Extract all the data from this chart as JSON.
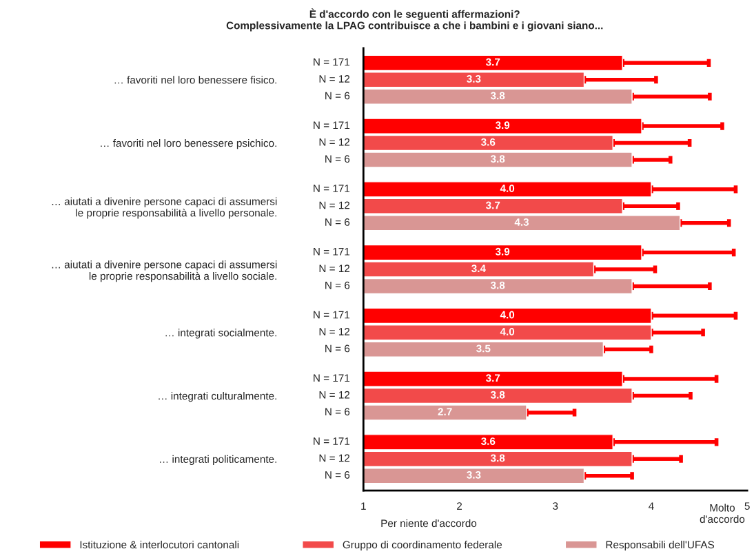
{
  "chart_data": {
    "type": "bar",
    "orientation": "horizontal",
    "title": "È d'accordo con le seguenti affermazioni?\nComplessivamente la LPAG contribuisce a che i bambini e i giovani siano...",
    "categories": [
      "… favoriti nel loro benessere fisico.",
      "… favoriti nel loro benessere psichico.",
      "… aiutati a divenire persone capaci di assumersi\nle proprie responsabilità a livello personale.",
      "… aiutati a divenire persone capaci di assumersi\nle proprie responsabilità a livello sociale.",
      "… integrati socialmente.",
      "… integrati culturalmente.",
      "… integrati politicamente."
    ],
    "series": [
      {
        "name": "Istituzione & interlocutori cantonali",
        "color": "#ff0000",
        "values": [
          3.7,
          3.9,
          4.0,
          3.9,
          4.0,
          3.7,
          3.6
        ],
        "value_labels": [
          "3.7",
          "3.9",
          "4.0",
          "3.9",
          "4.0",
          "3.7",
          "3.6"
        ],
        "errors": [
          [
            3.7,
            4.6
          ],
          [
            3.9,
            4.74
          ],
          [
            4.0,
            4.88
          ],
          [
            3.9,
            4.86
          ],
          [
            4.0,
            4.88
          ],
          [
            3.7,
            4.68
          ],
          [
            3.6,
            4.68
          ]
        ]
      },
      {
        "name": "Gruppo di coordinamento federale",
        "color": "#f24a4a",
        "values": [
          3.3,
          3.6,
          3.7,
          3.4,
          4.0,
          3.8,
          3.8
        ],
        "value_labels": [
          "3.3",
          "3.6",
          "3.7",
          "3.4",
          "4.0",
          "3.8",
          "3.8"
        ],
        "errors": [
          [
            3.3,
            4.05
          ],
          [
            3.6,
            4.4
          ],
          [
            3.7,
            4.28
          ],
          [
            3.4,
            4.04
          ],
          [
            4.0,
            4.54
          ],
          [
            3.8,
            4.41
          ],
          [
            3.8,
            4.31
          ]
        ]
      },
      {
        "name": "Responsabili dell'UFAS",
        "color": "#d99694",
        "values": [
          3.8,
          3.8,
          4.3,
          3.8,
          3.5,
          2.7,
          3.3
        ],
        "value_labels": [
          "3.8",
          "3.8",
          "4.3",
          "3.8",
          "3.5",
          "2.7",
          "3.3"
        ],
        "errors": [
          [
            3.8,
            4.61
          ],
          [
            3.8,
            4.2
          ],
          [
            4.3,
            4.81
          ],
          [
            3.8,
            4.61
          ],
          [
            3.5,
            4.0
          ],
          [
            2.7,
            3.2
          ],
          [
            3.3,
            3.8
          ]
        ]
      }
    ],
    "xlim": [
      1,
      5
    ],
    "xticks": [
      1,
      2,
      3,
      4,
      5
    ],
    "grid": false,
    "legend": "bottom",
    "annotations": [
      "N = 171",
      "N = 12",
      "N = 6",
      "N = 171",
      "N = 12",
      "N = 6",
      "N = 171",
      "N = 12",
      "N = 6",
      "N = 171",
      "N = 12",
      "N = 6",
      "N = 171",
      "N = 12",
      "N = 6",
      "N = 171",
      "N = 12",
      "N = 6",
      "N = 171",
      "N = 12",
      "N = 6",
      "Per niente d'accordo",
      "Molto\nd'accordo"
    ]
  }
}
